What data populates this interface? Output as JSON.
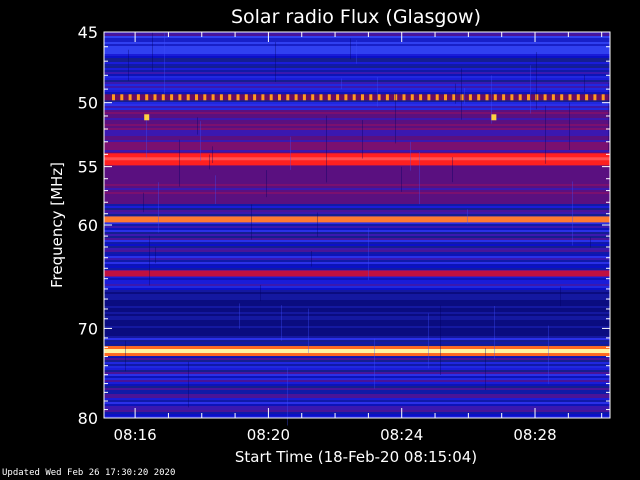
{
  "chart_data": {
    "type": "heatmap",
    "title": "Solar radio Flux (Glasgow)",
    "xlabel": "Start Time (18-Feb-20 08:15:04)",
    "ylabel": "Frequency [MHz]",
    "x_start": "08:15:04",
    "x_end": "08:30:15",
    "x_ticks": [
      "08:16",
      "08:20",
      "08:24",
      "08:28"
    ],
    "y_ticks": [
      45,
      50,
      55,
      60,
      70,
      80
    ],
    "ylim": [
      80,
      45
    ],
    "y_scale": "log",
    "bands": [
      {
        "freq": 49.6,
        "kind": "pulsed",
        "color": "#ff9a20"
      },
      {
        "freq": 54.4,
        "kind": "strong",
        "color": "#ff2020"
      },
      {
        "freq": 59.5,
        "kind": "strong",
        "color": "#ff7a30"
      },
      {
        "freq": 64.5,
        "kind": "strong",
        "color": "#c01040"
      },
      {
        "freq": 72.4,
        "kind": "bright",
        "color": "#fff4a0"
      }
    ],
    "spots": [
      {
        "time": "08:16:20",
        "freq": 51.1
      },
      {
        "time": "08:26:45",
        "freq": 51.1
      }
    ]
  },
  "footer": {
    "updated": "Updated Wed Feb 26 17:30:20 2020"
  },
  "colors": {
    "background": "#000000",
    "low": "#0a10c8",
    "mid": "#5a1090",
    "high": "#ff2020",
    "peak": "#ffff90"
  }
}
